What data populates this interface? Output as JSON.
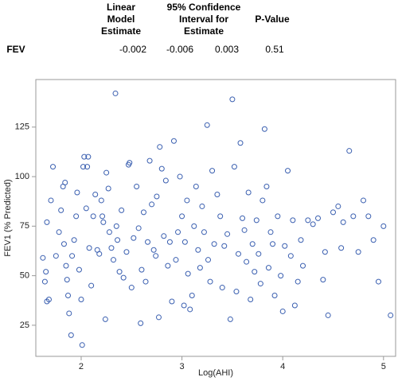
{
  "table": {
    "header": [
      "Linear Model Estimate",
      "95% Confidence Interval for Estimate",
      "P-Value"
    ],
    "rows": [
      [
        "FEV",
        -0.002,
        -0.006,
        0.003,
        0.51
      ]
    ]
  },
  "chart_data": {
    "type": "scatter",
    "x_label": "Log(AHI)",
    "y_label": "FEV1 (% Predicted)",
    "color": "#3a5fb0",
    "xlim": [
      1.55,
      5.12
    ],
    "ylim": [
      9.3,
      149
    ],
    "xticks": [
      2,
      3,
      4,
      5
    ],
    "yticks": [
      25,
      50,
      75,
      100,
      125
    ],
    "x": [
      1.62,
      1.64,
      1.66,
      1.68,
      1.65,
      1.66,
      1.7,
      1.72,
      1.75,
      1.78,
      1.8,
      1.82,
      1.84,
      1.83,
      1.85,
      1.86,
      1.87,
      1.88,
      1.9,
      1.91,
      1.93,
      1.95,
      1.96,
      1.98,
      2.0,
      2.01,
      2.02,
      2.03,
      2.05,
      2.06,
      2.07,
      2.08,
      2.1,
      2.12,
      2.14,
      2.16,
      2.18,
      2.2,
      2.21,
      2.22,
      2.24,
      2.25,
      2.27,
      2.28,
      2.3,
      2.32,
      2.34,
      2.35,
      2.36,
      2.38,
      2.4,
      2.42,
      2.45,
      2.47,
      2.48,
      2.5,
      2.52,
      2.55,
      2.57,
      2.59,
      2.6,
      2.62,
      2.64,
      2.66,
      2.68,
      2.7,
      2.72,
      2.74,
      2.75,
      2.77,
      2.78,
      2.8,
      2.82,
      2.84,
      2.86,
      2.88,
      2.9,
      2.92,
      2.94,
      2.96,
      2.98,
      3.0,
      3.02,
      3.03,
      3.05,
      3.06,
      3.08,
      3.1,
      3.12,
      3.14,
      3.16,
      3.18,
      3.2,
      3.22,
      3.25,
      3.26,
      3.28,
      3.3,
      3.32,
      3.35,
      3.38,
      3.4,
      3.42,
      3.45,
      3.48,
      3.5,
      3.52,
      3.54,
      3.56,
      3.58,
      3.6,
      3.62,
      3.64,
      3.66,
      3.68,
      3.7,
      3.72,
      3.74,
      3.76,
      3.78,
      3.8,
      3.82,
      3.84,
      3.86,
      3.88,
      3.9,
      3.92,
      3.95,
      3.98,
      4.0,
      4.02,
      4.05,
      4.08,
      4.1,
      4.12,
      4.15,
      4.18,
      4.2,
      4.25,
      4.3,
      4.35,
      4.4,
      4.42,
      4.45,
      4.5,
      4.55,
      4.58,
      4.6,
      4.66,
      4.7,
      4.75,
      4.8,
      4.85,
      4.9,
      4.95,
      5.0,
      5.07
    ],
    "y": [
      59,
      47,
      37,
      38,
      52,
      77,
      88,
      105,
      60,
      72,
      83,
      95,
      97,
      66,
      55,
      48,
      40,
      31,
      20,
      60,
      68,
      80,
      92,
      53,
      38,
      15,
      105,
      110,
      84,
      105,
      110,
      64,
      45,
      80,
      91,
      63,
      61,
      88,
      80,
      77,
      28,
      102,
      94,
      72,
      64,
      58,
      142,
      75,
      68,
      52,
      83,
      49,
      62,
      106,
      107,
      44,
      69,
      95,
      74,
      26,
      53,
      82,
      47,
      67,
      108,
      86,
      63,
      60,
      90,
      29,
      115,
      104,
      70,
      98,
      55,
      67,
      37,
      118,
      58,
      72,
      100,
      80,
      35,
      67,
      88,
      51,
      33,
      40,
      75,
      95,
      63,
      54,
      85,
      72,
      126,
      58,
      47,
      103,
      66,
      91,
      80,
      44,
      65,
      71,
      28,
      139,
      105,
      42,
      61,
      117,
      79,
      73,
      57,
      92,
      38,
      66,
      52,
      78,
      61,
      46,
      88,
      124,
      95,
      54,
      72,
      66,
      40,
      80,
      50,
      32,
      65,
      103,
      60,
      78,
      35,
      47,
      68,
      55,
      78,
      76,
      79,
      48,
      62,
      30,
      82,
      85,
      64,
      77,
      113,
      80,
      62,
      88,
      80,
      68,
      47,
      75,
      30
    ]
  }
}
